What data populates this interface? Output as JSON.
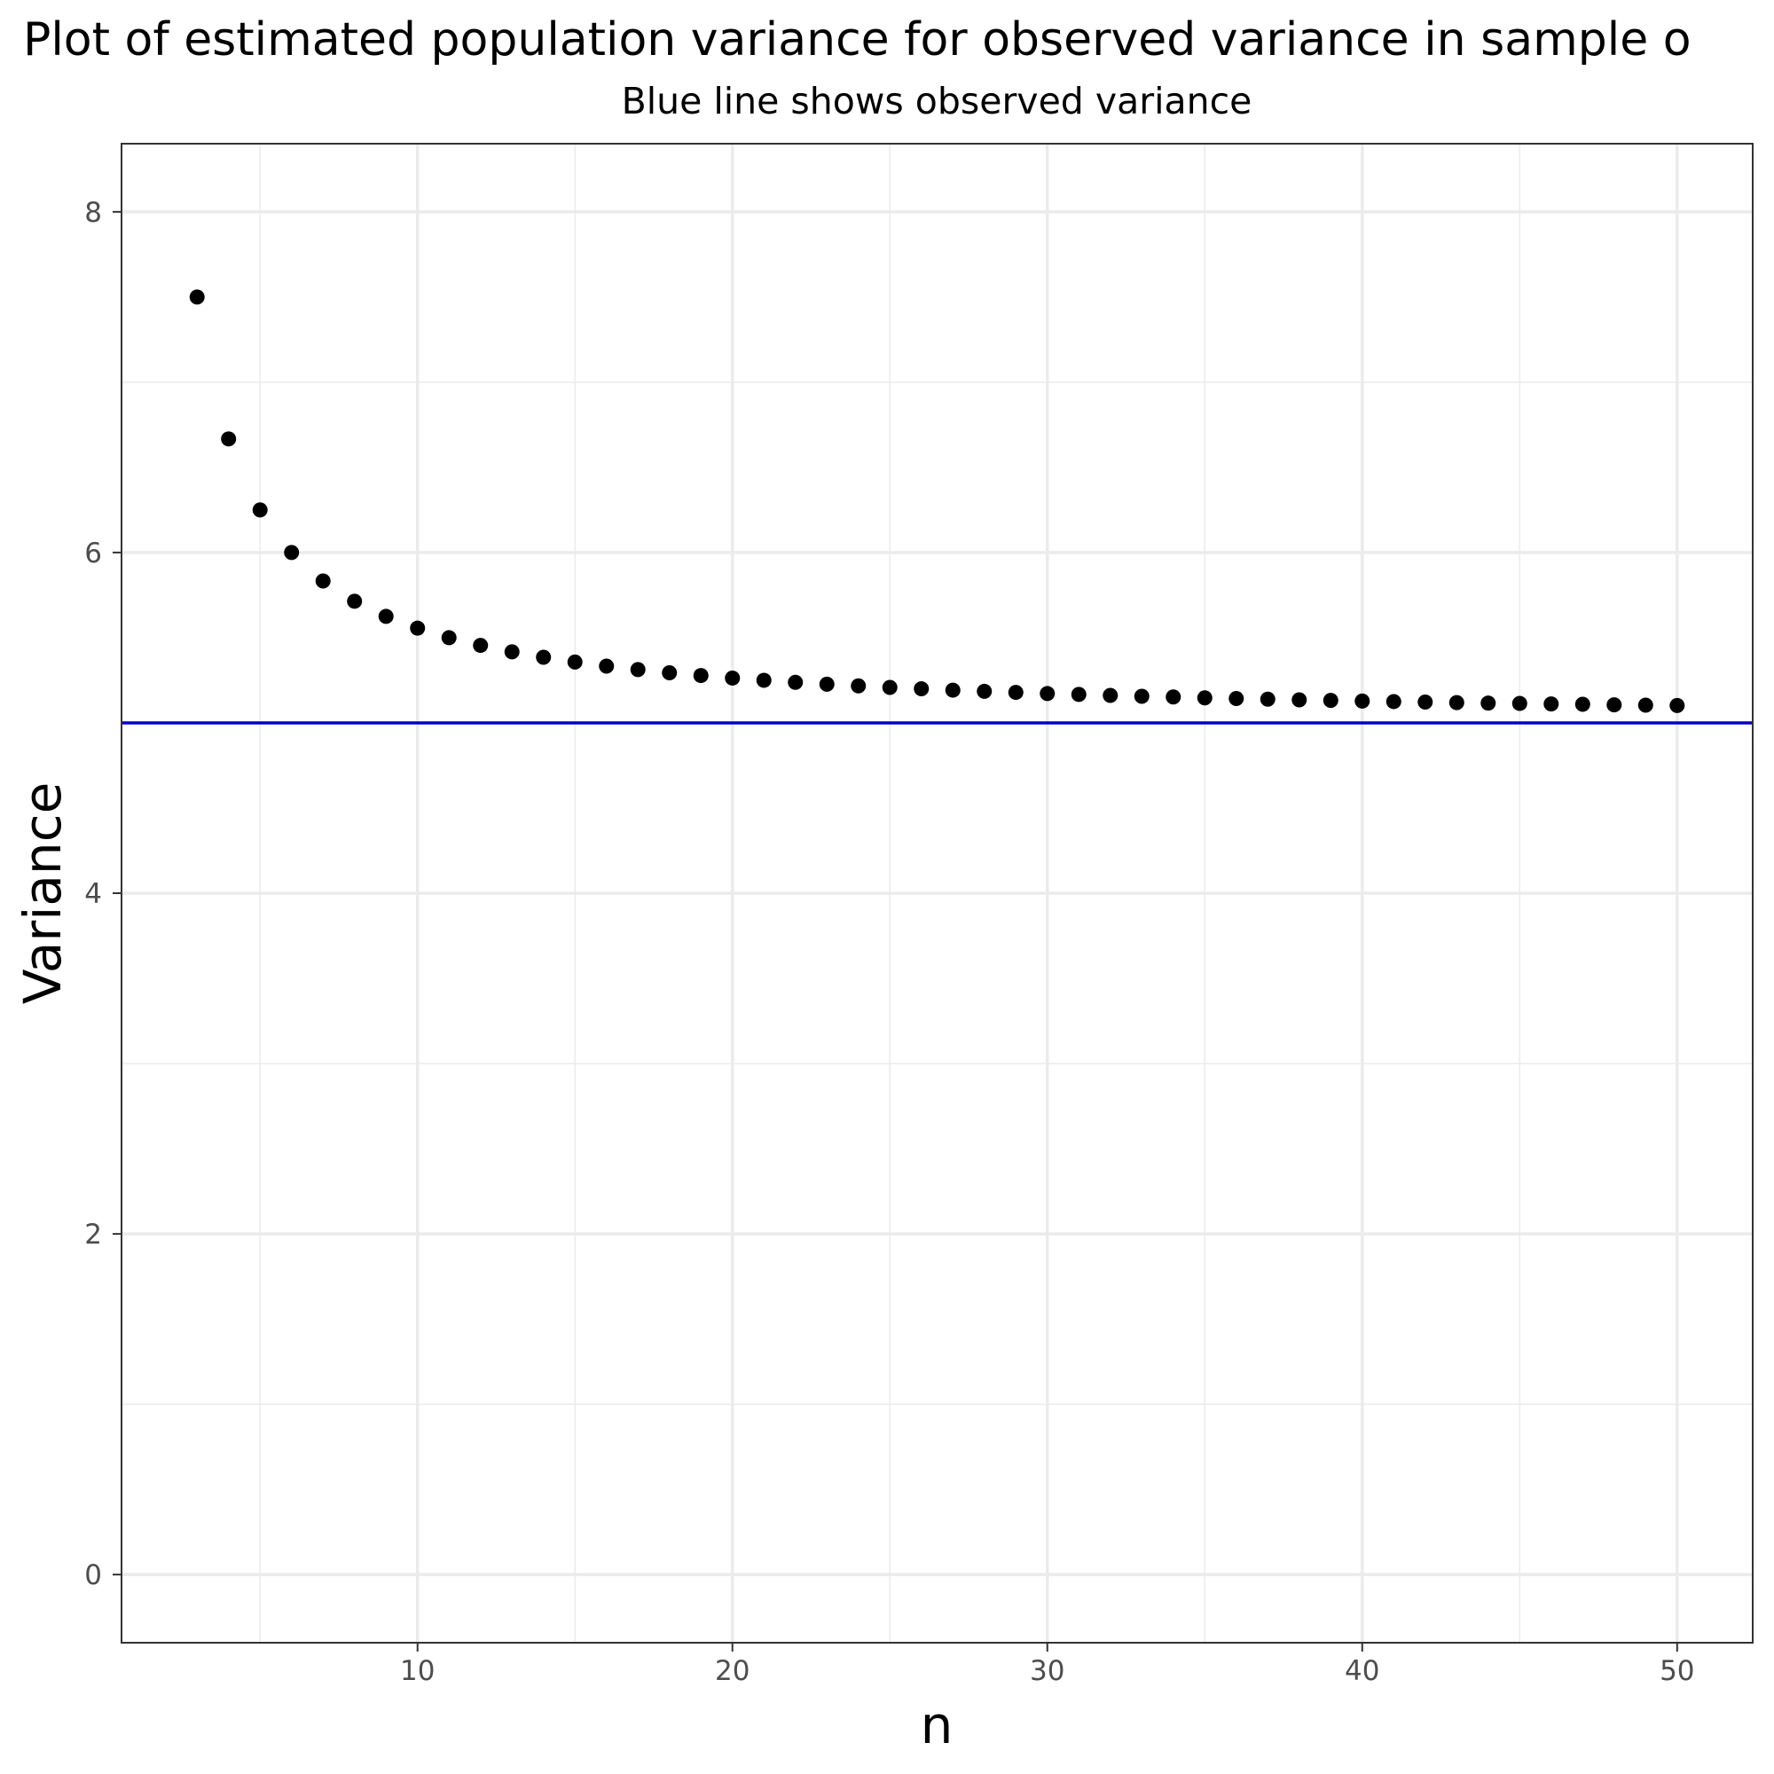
{
  "chart_data": {
    "type": "scatter",
    "title": "Plot of estimated population variance for observed variance in sample o",
    "subtitle": "Blue line shows observed variance",
    "xlabel": "n",
    "ylabel": "Variance",
    "xlim": [
      0.6,
      52.4
    ],
    "ylim": [
      -0.4,
      8.4
    ],
    "x_ticks": [
      10,
      20,
      30,
      40,
      50
    ],
    "x_tick_labels": [
      "10",
      "20",
      "30",
      "40",
      "50"
    ],
    "x_minor_ticks": [
      5,
      15,
      25,
      35,
      45
    ],
    "y_ticks": [
      0,
      2,
      4,
      6,
      8
    ],
    "y_tick_labels": [
      "0",
      "2",
      "4",
      "6",
      "8"
    ],
    "y_minor_ticks": [
      1,
      3,
      5,
      7
    ],
    "grid": true,
    "theme": "bw",
    "reference_line": {
      "orientation": "horizontal",
      "y": 5,
      "color": "#0000cc"
    },
    "point_color": "#000000",
    "series": [
      {
        "x": [
          3,
          4,
          5,
          6,
          7,
          8,
          9,
          10,
          11,
          12,
          13,
          14,
          15,
          16,
          17,
          18,
          19,
          20,
          21,
          22,
          23,
          24,
          25,
          26,
          27,
          28,
          29,
          30,
          31,
          32,
          33,
          34,
          35,
          36,
          37,
          38,
          39,
          40,
          41,
          42,
          43,
          44,
          45,
          46,
          47,
          48,
          49,
          50
        ],
        "values": [
          7.5,
          6.667,
          6.25,
          6.0,
          5.833,
          5.714,
          5.625,
          5.556,
          5.5,
          5.455,
          5.417,
          5.385,
          5.357,
          5.333,
          5.313,
          5.294,
          5.278,
          5.263,
          5.25,
          5.238,
          5.227,
          5.217,
          5.208,
          5.2,
          5.192,
          5.185,
          5.179,
          5.172,
          5.167,
          5.161,
          5.156,
          5.152,
          5.147,
          5.143,
          5.139,
          5.135,
          5.132,
          5.128,
          5.125,
          5.122,
          5.119,
          5.116,
          5.114,
          5.111,
          5.109,
          5.106,
          5.104,
          5.102
        ]
      }
    ]
  }
}
